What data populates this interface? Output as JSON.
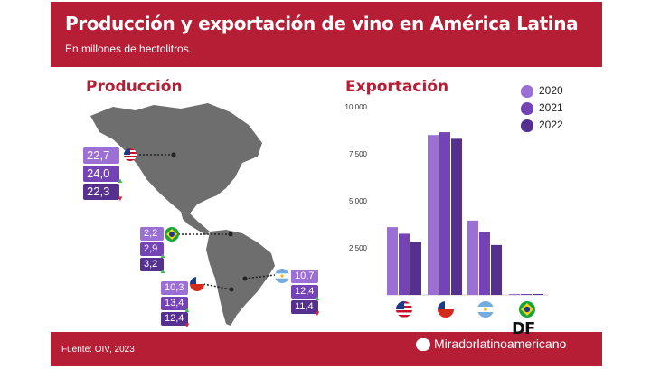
{
  "header": {
    "title": "Producción y exportación de vino en América Latina",
    "subtitle": "En millones de hectolitros."
  },
  "sections": {
    "production": "Producción",
    "export": "Exportación"
  },
  "legend": {
    "items": [
      {
        "label": "2020",
        "color": "#9b6fd3"
      },
      {
        "label": "2021",
        "color": "#7443b5"
      },
      {
        "label": "2022",
        "color": "#55308e"
      }
    ]
  },
  "production": {
    "usa": {
      "values": [
        "22,7",
        "24,0",
        "22,3"
      ],
      "changes": [
        "",
        "up",
        "down"
      ]
    },
    "brazil": {
      "values": [
        "2,2",
        "2,9",
        "3,2"
      ],
      "changes": [
        "",
        "up",
        "up"
      ]
    },
    "chile": {
      "values": [
        "10,3",
        "13,4",
        "12,4"
      ],
      "changes": [
        "",
        "up",
        "down"
      ]
    },
    "argentina": {
      "values": [
        "10,7",
        "12,4",
        "11,4"
      ],
      "changes": [
        "",
        "up",
        "down"
      ]
    }
  },
  "chart_data": {
    "type": "bar",
    "title": "Exportación",
    "categories": [
      "USA",
      "Chile",
      "Argentina",
      "Brasil"
    ],
    "series": [
      {
        "name": "2020",
        "values": [
          3600,
          8500,
          3950,
          50
        ]
      },
      {
        "name": "2021",
        "values": [
          3250,
          8650,
          3350,
          50
        ]
      },
      {
        "name": "2022",
        "values": [
          2800,
          8300,
          2650,
          50
        ]
      }
    ],
    "yticks": [
      "10.000",
      "7.500",
      "5.000",
      "2.500"
    ],
    "ylim": [
      0,
      10000
    ],
    "colors": [
      "#9b6fd3",
      "#7443b5",
      "#55308e"
    ]
  },
  "footer": {
    "source": "Fuente: OIV, 2023",
    "watermark": "Miradorlatinoamericano",
    "logo": "DF"
  }
}
